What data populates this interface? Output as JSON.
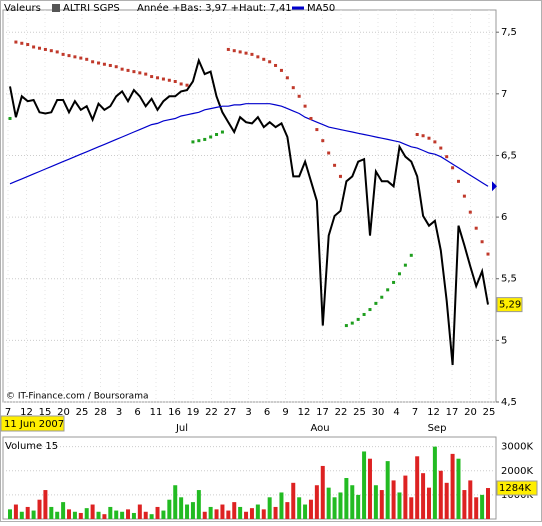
{
  "chart_data": [
    {
      "type": "line",
      "header_label": "Valeurs",
      "range_text": "Année +Bas: 3,97 +Haut: 7,41",
      "source": "© IT-Finance.com / Boursorama",
      "date_label": "11 Jun 2007",
      "x_labels": [
        "7",
        "12",
        "15",
        "20",
        "25",
        "28",
        "3",
        "6",
        "11",
        "16",
        "19",
        "22",
        "27",
        "3",
        "6",
        "9",
        "12",
        "17",
        "22",
        "25",
        "30",
        "4",
        "7",
        "12",
        "17",
        "20",
        "25"
      ],
      "months": [
        "Jul",
        "Aou",
        "Sep"
      ],
      "ylim": [
        4.5,
        7.68
      ],
      "yticks": [
        {
          "value": 4.5,
          "label": "4,5"
        },
        5,
        {
          "value": 5.5,
          "label": "5,5"
        },
        6,
        {
          "value": 6.5,
          "label": "6,5"
        },
        7,
        {
          "value": 7.5,
          "label": "7,5"
        }
      ],
      "grid": true,
      "last_label": "5,29",
      "series": [
        {
          "name": "ALTRI SGPS",
          "color": "#000000",
          "style": "line",
          "values": [
            7.06,
            6.81,
            6.98,
            6.94,
            6.95,
            6.85,
            6.84,
            6.85,
            6.95,
            6.95,
            6.85,
            6.94,
            6.87,
            6.9,
            6.79,
            6.92,
            6.87,
            6.9,
            6.98,
            7.02,
            6.94,
            7.03,
            6.98,
            6.9,
            6.96,
            6.87,
            6.94,
            6.98,
            6.98,
            7.02,
            7.03,
            7.1,
            7.27,
            7.16,
            7.18,
            6.98,
            6.85,
            6.77,
            6.69,
            6.81,
            6.77,
            6.76,
            6.81,
            6.73,
            6.77,
            6.73,
            6.76,
            6.65,
            6.33,
            6.33,
            6.45,
            6.29,
            6.13,
            5.12,
            5.85,
            6.01,
            6.05,
            6.29,
            6.33,
            6.45,
            6.47,
            5.85,
            6.37,
            6.29,
            6.29,
            6.25,
            6.57,
            6.49,
            6.45,
            6.33,
            6.01,
            5.93,
            5.97,
            5.73,
            5.32,
            4.8,
            5.93,
            5.77,
            5.6,
            5.44,
            5.56,
            5.29
          ]
        },
        {
          "name": "MA50",
          "color": "#0000cc",
          "style": "line",
          "values": [
            6.27,
            6.29,
            6.31,
            6.33,
            6.35,
            6.37,
            6.39,
            6.41,
            6.43,
            6.45,
            6.47,
            6.49,
            6.51,
            6.53,
            6.55,
            6.57,
            6.59,
            6.61,
            6.63,
            6.65,
            6.67,
            6.69,
            6.71,
            6.73,
            6.75,
            6.76,
            6.78,
            6.79,
            6.8,
            6.82,
            6.83,
            6.84,
            6.85,
            6.87,
            6.88,
            6.89,
            6.9,
            6.9,
            6.91,
            6.91,
            6.92,
            6.92,
            6.92,
            6.92,
            6.92,
            6.91,
            6.9,
            6.88,
            6.86,
            6.84,
            6.81,
            6.79,
            6.77,
            6.75,
            6.73,
            6.72,
            6.71,
            6.7,
            6.69,
            6.68,
            6.67,
            6.66,
            6.65,
            6.64,
            6.63,
            6.62,
            6.61,
            6.59,
            6.57,
            6.56,
            6.54,
            6.52,
            6.51,
            6.49,
            6.46,
            6.43,
            6.4,
            6.37,
            6.34,
            6.31,
            6.28,
            6.25
          ]
        },
        {
          "color": "#c0392b",
          "style": "dots",
          "values": [
            null,
            7.42,
            7.41,
            7.4,
            7.38,
            7.37,
            7.36,
            7.35,
            7.34,
            7.32,
            7.31,
            7.3,
            7.29,
            7.28,
            7.26,
            7.25,
            7.24,
            7.23,
            7.22,
            7.2,
            7.19,
            7.18,
            7.17,
            7.16,
            7.14,
            7.13,
            7.12,
            7.11,
            7.1,
            7.08,
            7.07,
            null,
            null,
            null,
            null,
            null,
            null,
            7.36,
            7.35,
            7.34,
            7.33,
            7.32,
            7.3,
            7.28,
            7.26,
            7.23,
            7.19,
            7.13,
            7.05,
            6.98,
            6.9,
            6.8,
            6.71,
            6.62,
            6.52,
            6.42,
            6.33,
            null,
            null,
            null,
            null,
            null,
            null,
            null,
            null,
            null,
            null,
            null,
            null,
            6.67,
            6.66,
            6.64,
            6.61,
            6.56,
            6.49,
            6.4,
            6.29,
            6.17,
            6.04,
            5.91,
            5.8,
            5.7
          ]
        },
        {
          "color": "#1e9e1e",
          "style": "dots",
          "values": [
            6.8,
            null,
            null,
            null,
            null,
            null,
            null,
            null,
            null,
            null,
            null,
            null,
            null,
            null,
            null,
            null,
            null,
            null,
            null,
            null,
            null,
            null,
            null,
            null,
            null,
            null,
            null,
            null,
            null,
            null,
            null,
            6.61,
            6.62,
            6.63,
            6.65,
            6.67,
            6.69,
            null,
            null,
            null,
            null,
            null,
            null,
            null,
            null,
            null,
            null,
            null,
            null,
            null,
            null,
            null,
            null,
            null,
            null,
            null,
            null,
            5.12,
            5.14,
            5.17,
            5.21,
            5.25,
            5.3,
            5.35,
            5.41,
            5.47,
            5.54,
            5.61,
            5.69,
            null,
            null,
            null,
            null,
            null,
            null,
            null,
            null,
            null,
            null,
            null,
            null,
            null
          ]
        }
      ]
    },
    {
      "type": "bar",
      "title": "Volume 15",
      "ylim": [
        0,
        3400
      ],
      "yticks": [
        {
          "value": 1000,
          "label": "1000K"
        },
        {
          "value": 2000,
          "label": "2000K"
        },
        {
          "value": 3000,
          "label": "3000K"
        }
      ],
      "up_color": "#22bb22",
      "down_color": "#dd2222",
      "last_label": "1284K",
      "values": [
        400,
        600,
        300,
        500,
        350,
        800,
        1200,
        500,
        300,
        700,
        400,
        300,
        250,
        450,
        600,
        300,
        200,
        500,
        350,
        300,
        400,
        250,
        600,
        300,
        200,
        500,
        350,
        800,
        1400,
        900,
        600,
        700,
        1200,
        300,
        500,
        400,
        600,
        350,
        700,
        500,
        300,
        450,
        600,
        400,
        900,
        500,
        1100,
        700,
        1500,
        900,
        600,
        800,
        1400,
        2200,
        1300,
        900,
        1100,
        1700,
        1400,
        1000,
        2800,
        2500,
        1400,
        1200,
        2400,
        1600,
        1100,
        1800,
        900,
        2600,
        1900,
        1300,
        3000,
        2000,
        1500,
        2700,
        2500,
        1200,
        1600,
        900,
        1000,
        1284
      ]
    }
  ]
}
